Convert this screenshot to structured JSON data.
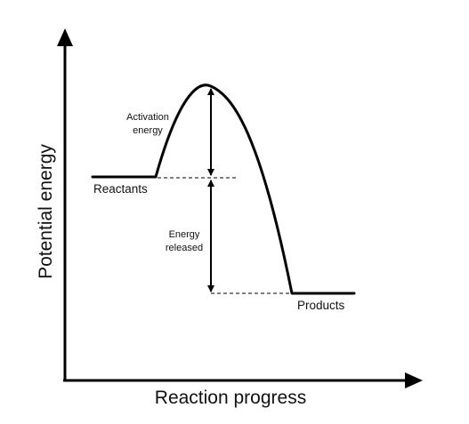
{
  "diagram": {
    "axes": {
      "y_label": "Potential energy",
      "x_label": "Reaction progress"
    },
    "labels": {
      "reactants": "Reactants",
      "products": "Products",
      "activation_energy": [
        "Activation",
        "energy"
      ],
      "energy_released": [
        "Energy",
        "released"
      ]
    },
    "colors": {
      "curve": "#000000",
      "text": "#111111"
    }
  }
}
